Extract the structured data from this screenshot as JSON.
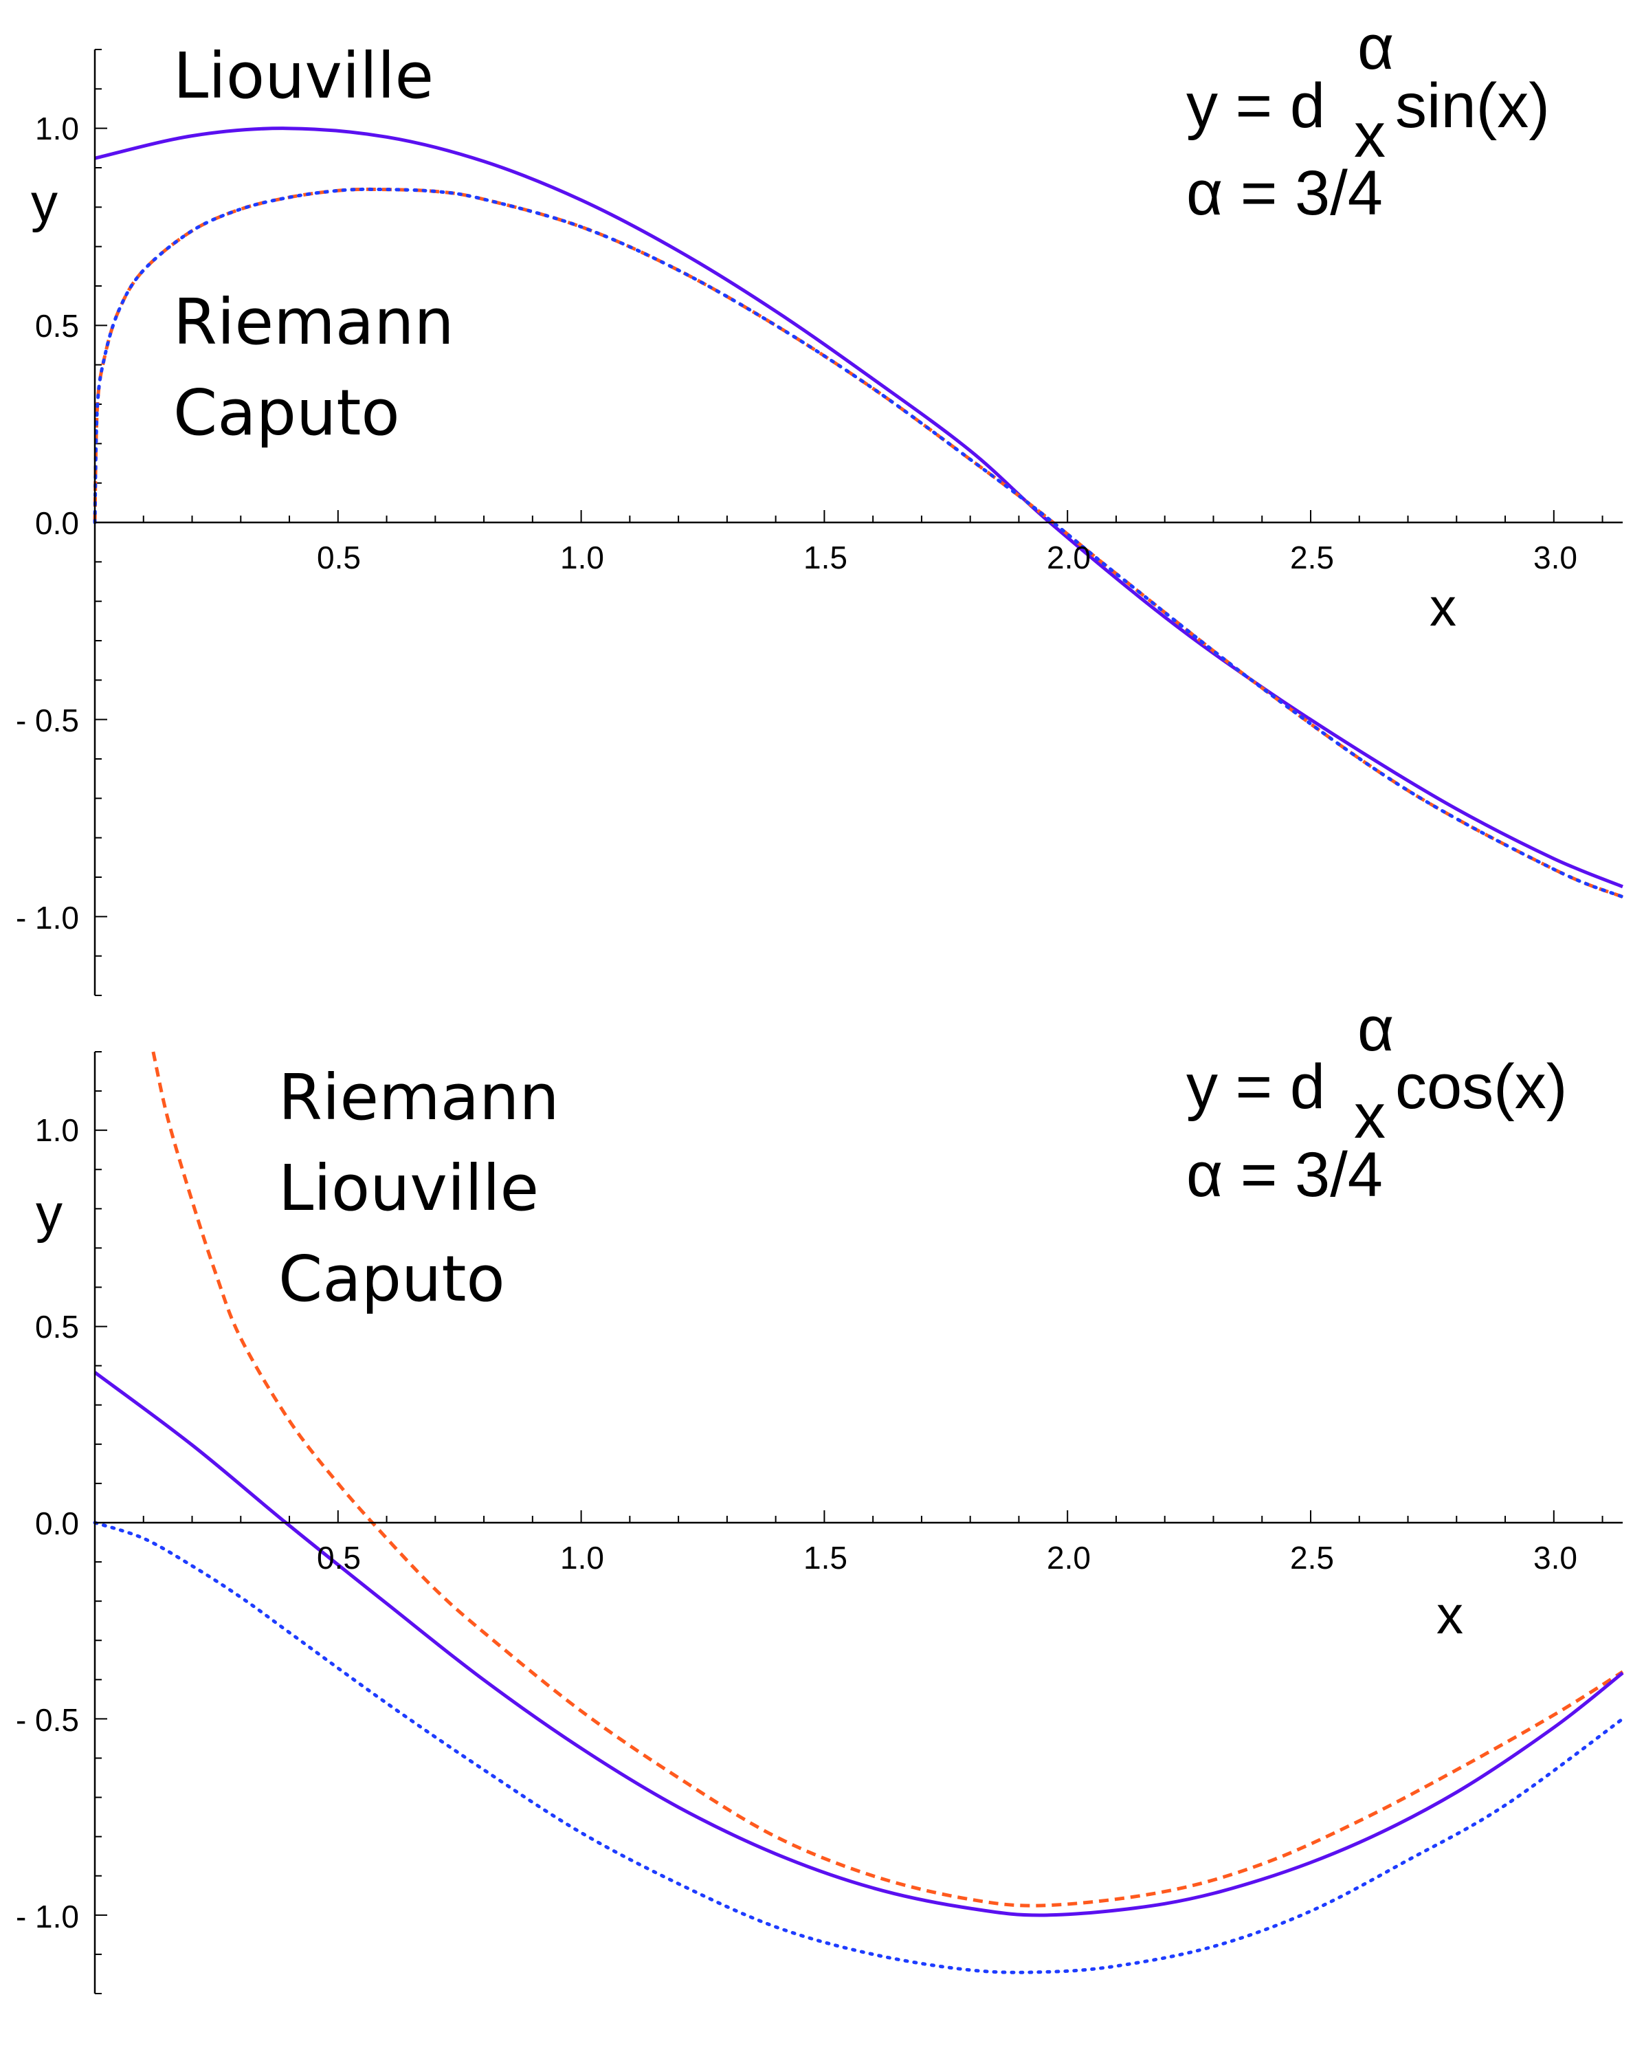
{
  "chart_data": [
    {
      "type": "line",
      "xlabel": "x",
      "ylabel": "y",
      "xlim": [
        0,
        3.1416
      ],
      "ylim": [
        -1.2,
        1.2
      ],
      "x_ticks": [
        "0.5",
        "1.0",
        "1.5",
        "2.0",
        "2.5",
        "3.0"
      ],
      "y_ticks": [
        "1.0",
        "0.5",
        "0.0",
        "- 0.5",
        "- 1.0"
      ],
      "formula": {
        "prefix": "y = d",
        "superscript": "α",
        "subscript": "x",
        "function": " sin(x)"
      },
      "alpha_text": "α = 3/4",
      "labels": [
        "Liouville",
        "Riemann",
        "Caputo"
      ],
      "series": [
        {
          "name": "Liouville",
          "style": "solid",
          "color": "#5a10f0",
          "x": [
            0,
            0.2,
            0.3927,
            0.6,
            0.8,
            1.0,
            1.2,
            1.4,
            1.6,
            1.8,
            1.9635,
            2.2,
            2.4,
            2.6,
            2.8,
            3.0,
            3.1416
          ],
          "y": [
            0.924,
            0.981,
            1.0,
            0.978,
            0.916,
            0.818,
            0.689,
            0.536,
            0.364,
            0.182,
            0.0,
            -0.24,
            -0.418,
            -0.579,
            -0.727,
            -0.853,
            -0.924
          ]
        },
        {
          "name": "Riemann",
          "style": "dashed",
          "color": "#ff5a1e",
          "x": [
            0,
            0.005,
            0.02,
            0.05,
            0.1,
            0.2,
            0.3,
            0.4,
            0.5,
            0.58,
            0.7,
            0.8,
            1.0,
            1.2,
            1.4,
            1.6,
            1.8,
            1.95,
            2.1,
            2.4,
            2.7,
            3.0,
            3.1416
          ],
          "y": [
            0.0,
            0.29,
            0.42,
            0.54,
            0.64,
            0.74,
            0.795,
            0.825,
            0.842,
            0.845,
            0.84,
            0.82,
            0.75,
            0.64,
            0.5,
            0.34,
            0.16,
            0.02,
            -0.13,
            -0.42,
            -0.68,
            -0.88,
            -0.95
          ]
        },
        {
          "name": "Caputo",
          "style": "dotted",
          "color": "#1e3cff",
          "x": [
            0,
            0.005,
            0.02,
            0.05,
            0.1,
            0.2,
            0.3,
            0.4,
            0.5,
            0.58,
            0.7,
            0.8,
            1.0,
            1.2,
            1.4,
            1.6,
            1.8,
            1.95,
            2.1,
            2.4,
            2.7,
            3.0,
            3.1416
          ],
          "y": [
            0.0,
            0.29,
            0.42,
            0.54,
            0.64,
            0.74,
            0.795,
            0.825,
            0.842,
            0.845,
            0.84,
            0.82,
            0.75,
            0.64,
            0.5,
            0.34,
            0.16,
            0.02,
            -0.13,
            -0.42,
            -0.68,
            -0.88,
            -0.95
          ]
        }
      ]
    },
    {
      "type": "line",
      "xlabel": "x",
      "ylabel": "y",
      "xlim": [
        0,
        3.1416
      ],
      "ylim": [
        -1.2,
        1.2
      ],
      "x_ticks": [
        "0.5",
        "1.0",
        "1.5",
        "2.0",
        "2.5",
        "3.0"
      ],
      "y_ticks": [
        "1.0",
        "0.5",
        "0.0",
        "- 0.5",
        "- 1.0"
      ],
      "formula": {
        "prefix": "y = d",
        "superscript": "α",
        "subscript": "x",
        "function": " cos(x)"
      },
      "alpha_text": "α = 3/4",
      "labels": [
        "Riemann",
        "Liouville",
        "Caputo"
      ],
      "series": [
        {
          "name": "Riemann",
          "style": "dashed",
          "color": "#ff5a1e",
          "x": [
            0.12,
            0.15,
            0.2,
            0.25,
            0.3,
            0.4,
            0.5,
            0.6,
            0.7,
            0.8,
            1.0,
            1.2,
            1.4,
            1.6,
            1.8,
            1.96,
            2.2,
            2.4,
            2.6,
            2.8,
            3.0,
            3.1416
          ],
          "y": [
            1.2,
            1.03,
            0.82,
            0.63,
            0.47,
            0.26,
            0.1,
            -0.04,
            -0.17,
            -0.28,
            -0.48,
            -0.65,
            -0.8,
            -0.9,
            -0.96,
            -0.975,
            -0.94,
            -0.87,
            -0.76,
            -0.63,
            -0.49,
            -0.38
          ]
        },
        {
          "name": "Liouville",
          "style": "solid",
          "color": "#5a10f0",
          "x": [
            0,
            0.2,
            0.3927,
            0.6,
            0.8,
            1.0,
            1.2,
            1.4,
            1.6,
            1.8,
            1.9635,
            2.2,
            2.4,
            2.6,
            2.8,
            3.0,
            3.1416
          ],
          "y": [
            0.383,
            0.198,
            0.0,
            -0.206,
            -0.401,
            -0.575,
            -0.725,
            -0.844,
            -0.931,
            -0.983,
            -1.0,
            -0.971,
            -0.909,
            -0.815,
            -0.687,
            -0.522,
            -0.383
          ]
        },
        {
          "name": "Caputo",
          "style": "dotted",
          "color": "#1e3cff",
          "x": [
            0,
            0.1,
            0.2,
            0.3,
            0.4,
            0.6,
            0.8,
            1.0,
            1.2,
            1.4,
            1.6,
            1.8,
            1.95,
            2.1,
            2.3,
            2.5,
            2.7,
            2.9,
            3.1416
          ],
          "y": [
            0.0,
            -0.04,
            -0.11,
            -0.19,
            -0.28,
            -0.46,
            -0.63,
            -0.79,
            -0.92,
            -1.03,
            -1.1,
            -1.14,
            -1.145,
            -1.13,
            -1.08,
            -0.99,
            -0.86,
            -0.72,
            -0.5
          ]
        }
      ]
    }
  ]
}
